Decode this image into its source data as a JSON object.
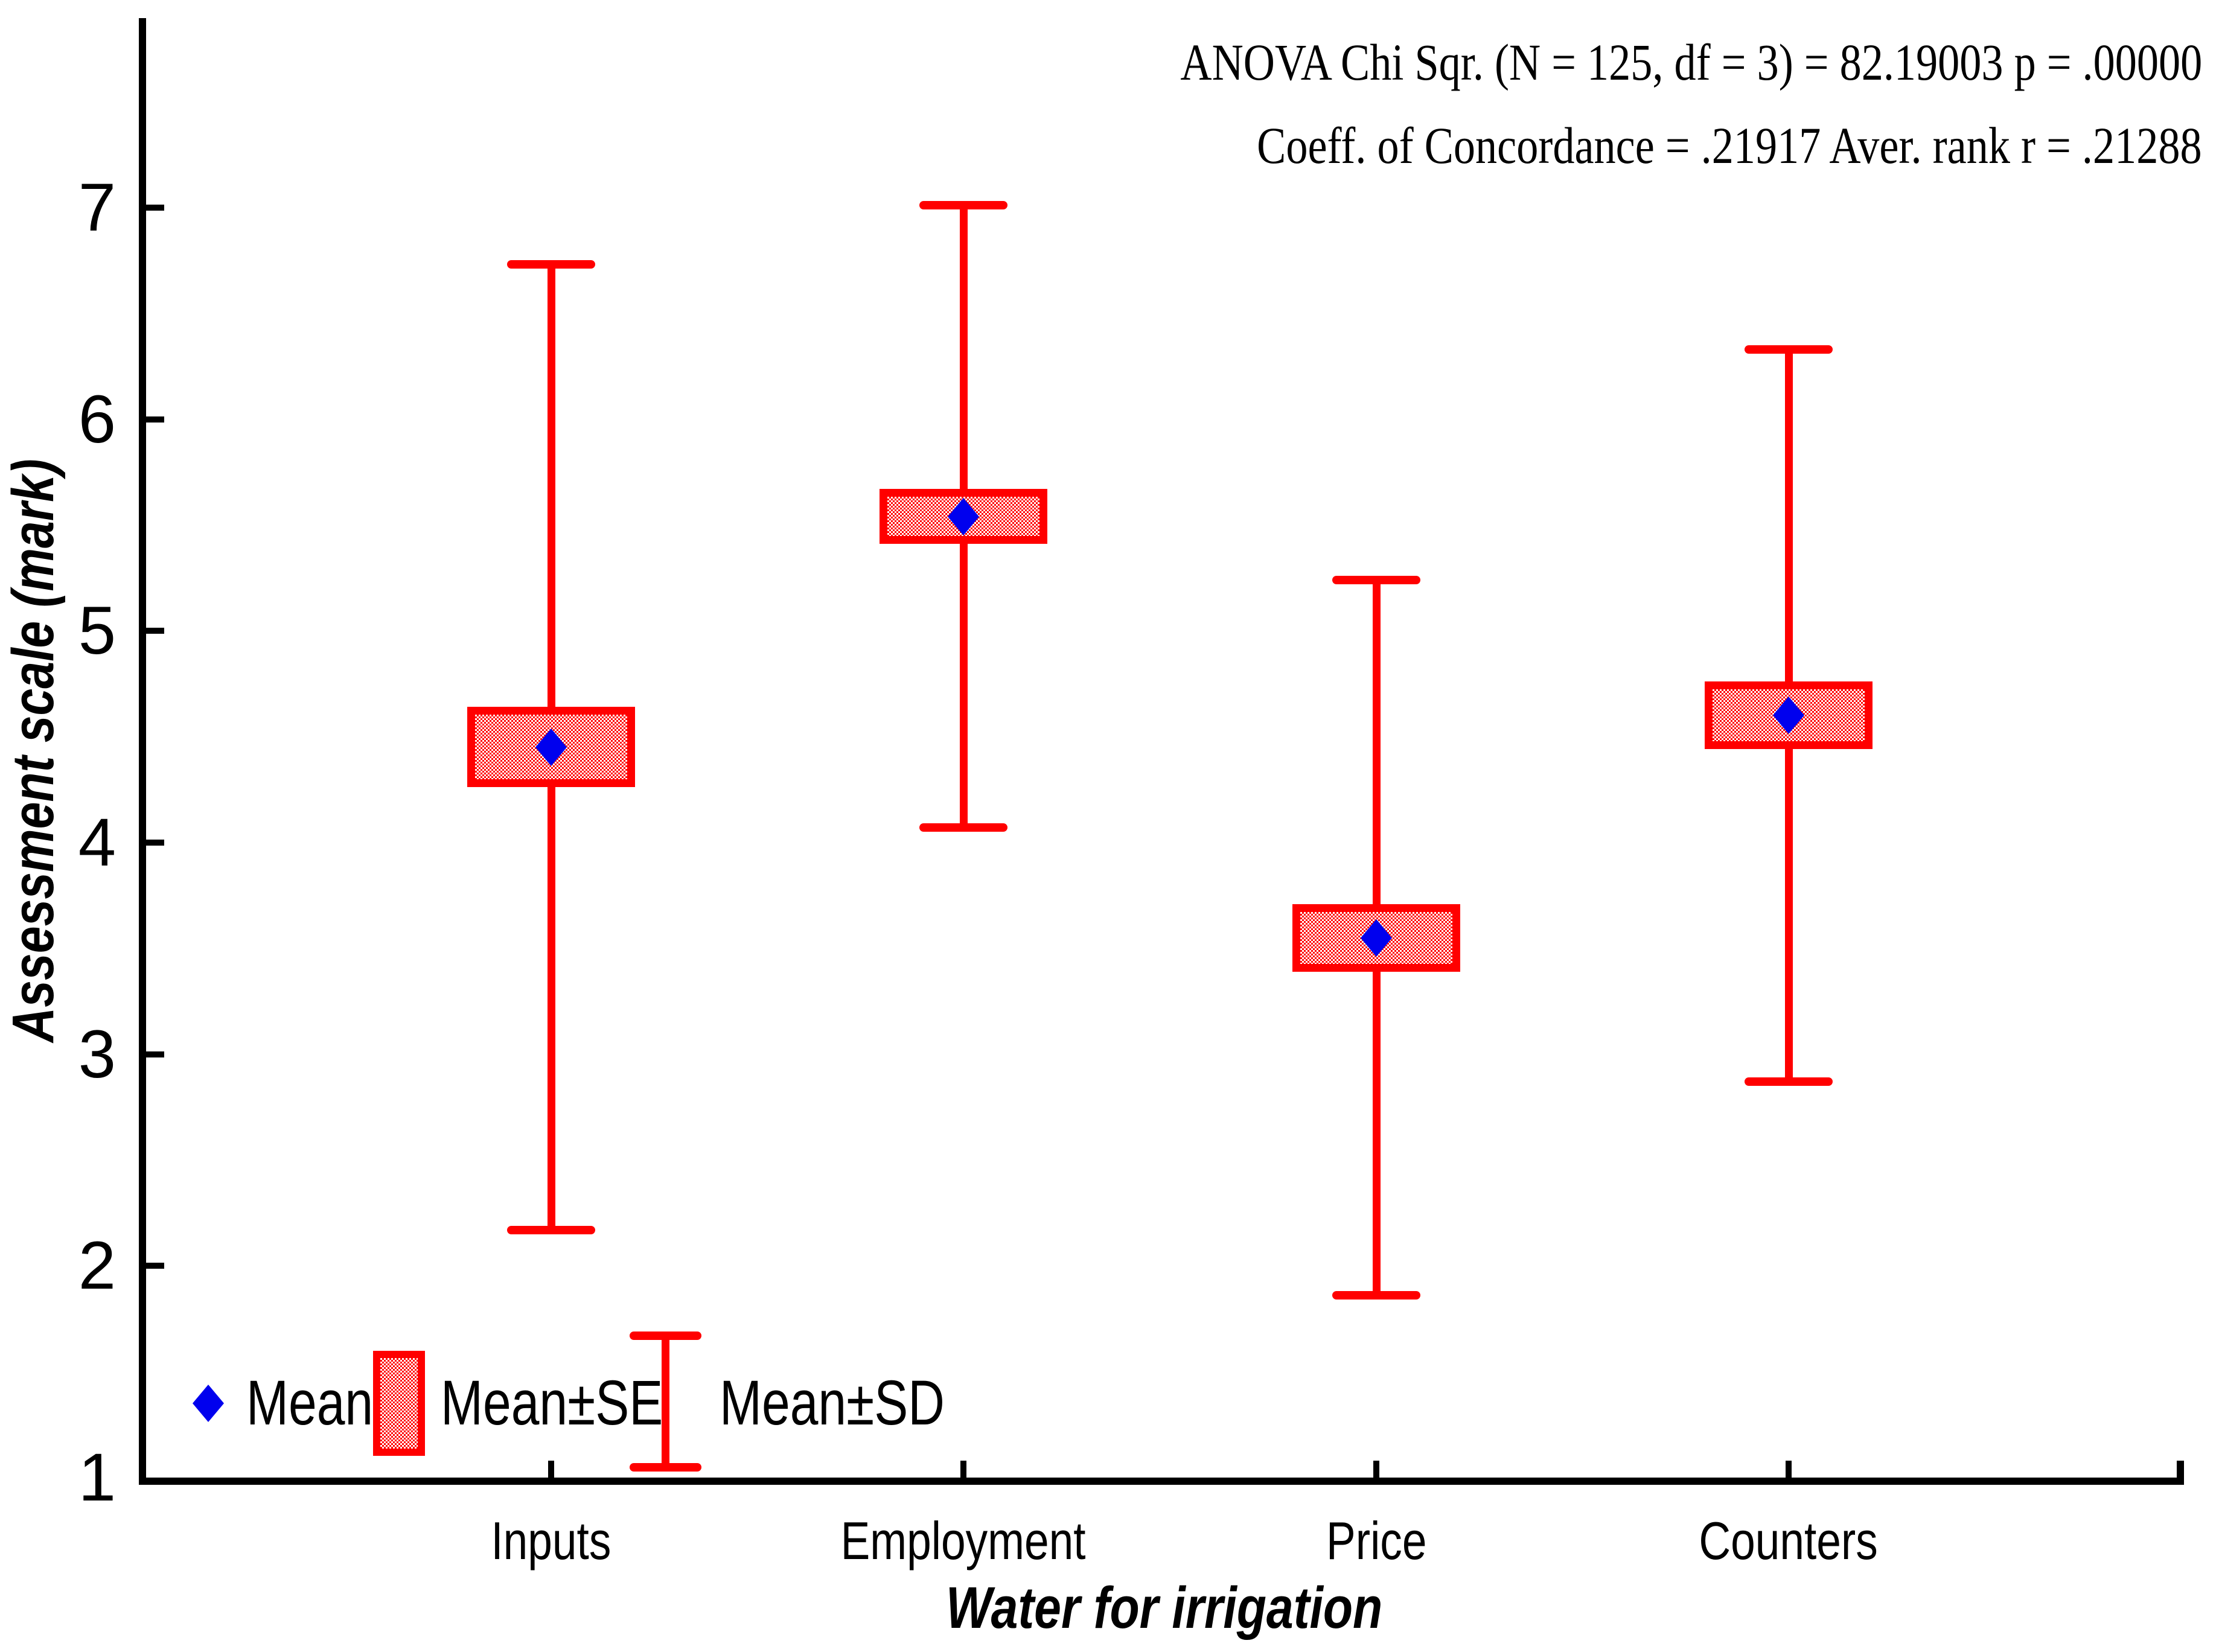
{
  "annotation": {
    "line1": "ANOVA Chi Sqr. (N = 125, df = 3) = 82.19003 p = .00000",
    "line2": "Coeff. of Concordance = .21917 Aver. rank r = .21288"
  },
  "axes": {
    "y": {
      "title": "Assessment scale (mark)",
      "tick_labels": [
        "1",
        "2",
        "3",
        "4",
        "5",
        "6",
        "7"
      ]
    },
    "x": {
      "title": "Water for irrigation"
    }
  },
  "legend": {
    "mean": "Mean",
    "se": "Mean±SE",
    "sd": "Mean±SD"
  },
  "colors": {
    "series_red": "#FF0000",
    "mean_marker_blue": "#0000EE",
    "axis_black": "#000000",
    "background": "#FFFFFF"
  },
  "chart_data": {
    "type": "box",
    "title": "",
    "xlabel": "Water for irrigation",
    "ylabel": "Assessment scale (mark)",
    "categories": [
      "Inputs",
      "Employment",
      "Price",
      "Counters"
    ],
    "yticks": [
      1,
      2,
      3,
      4,
      5,
      6,
      7
    ],
    "ylim": [
      1,
      7.9
    ],
    "grid": false,
    "legend_position": "inside-bottom-left",
    "marker": "diamond",
    "box_style": "mean±SE box with mean±SD whiskers",
    "series": [
      {
        "name": "Inputs",
        "mean": 4.45,
        "se": 0.19,
        "sd": 2.28,
        "mean_plus_se": 4.64,
        "mean_minus_se": 4.26,
        "mean_plus_sd": 6.73,
        "mean_minus_sd": 2.17
      },
      {
        "name": "Employment",
        "mean": 5.54,
        "se": 0.13,
        "sd": 1.47,
        "mean_plus_se": 5.67,
        "mean_minus_se": 5.41,
        "mean_plus_sd": 7.01,
        "mean_minus_sd": 4.07
      },
      {
        "name": "Price",
        "mean": 3.55,
        "se": 0.16,
        "sd": 1.69,
        "mean_plus_se": 3.71,
        "mean_minus_se": 3.39,
        "mean_plus_sd": 5.24,
        "mean_minus_sd": 1.86
      },
      {
        "name": "Counters",
        "mean": 4.6,
        "se": 0.16,
        "sd": 1.73,
        "mean_plus_se": 4.76,
        "mean_minus_se": 4.44,
        "mean_plus_sd": 6.33,
        "mean_minus_sd": 2.87
      }
    ],
    "stats_annotation": [
      "ANOVA Chi Sqr. (N = 125, df = 3) = 82.19003 p = .00000",
      "Coeff. of Concordance = .21917 Aver. rank r = .21288"
    ]
  }
}
